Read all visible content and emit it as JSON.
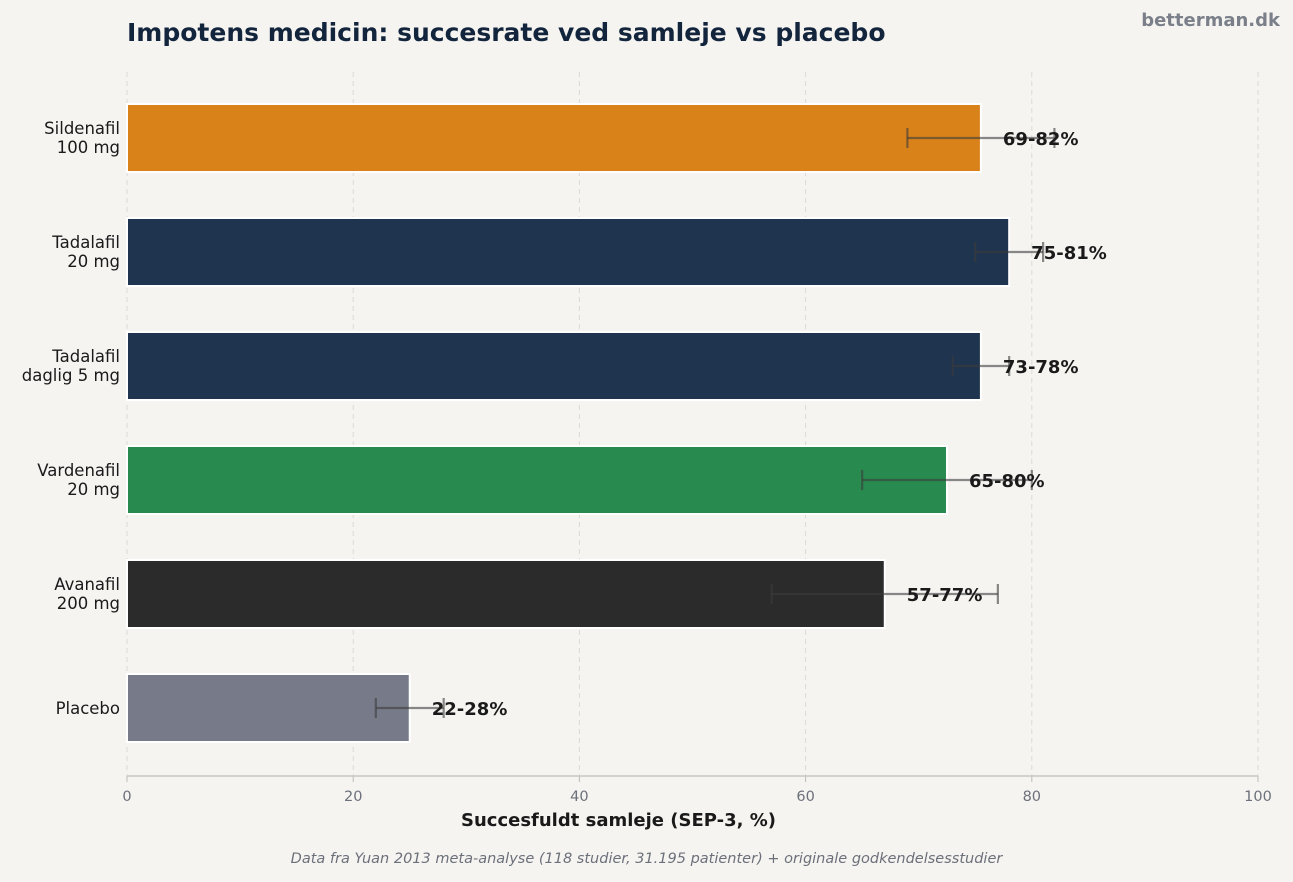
{
  "header": {
    "title": "Impotens medicin: succesrate ved samleje vs placebo",
    "brand": "betterman.dk"
  },
  "footer": {
    "caption": "Data fra Yuan 2013 meta-analyse (118 studier, 31.195 patienter) + originale godkendelsesstudier"
  },
  "chart_data": {
    "type": "bar",
    "orientation": "horizontal",
    "title": "Impotens medicin: succesrate ved samleje vs placebo",
    "xlabel": "Succesfuldt samleje (SEP-3, %)",
    "ylabel": "",
    "xlim": [
      0,
      100
    ],
    "xticks": [
      0,
      20,
      40,
      60,
      80,
      100
    ],
    "grid": "vertical dashed",
    "categories": [
      [
        "Sildenafil",
        "100 mg"
      ],
      [
        "Tadalafil",
        "20 mg"
      ],
      [
        "Tadalafil",
        "daglig 5 mg"
      ],
      [
        "Vardenafil",
        "20 mg"
      ],
      [
        "Avanafil",
        "200 mg"
      ],
      [
        "Placebo"
      ]
    ],
    "values": [
      75.5,
      78,
      75.5,
      72.5,
      67,
      25
    ],
    "ranges": [
      [
        69,
        82
      ],
      [
        75,
        81
      ],
      [
        73,
        78
      ],
      [
        65,
        80
      ],
      [
        57,
        77
      ],
      [
        22,
        28
      ]
    ],
    "range_labels": [
      "69-82%",
      "75-81%",
      "73-78%",
      "65-80%",
      "57-77%",
      "22-28%"
    ],
    "colors": [
      "#d9821a",
      "#1f344e",
      "#1f344e",
      "#288a4f",
      "#2b2b2b",
      "#777b89"
    ]
  }
}
